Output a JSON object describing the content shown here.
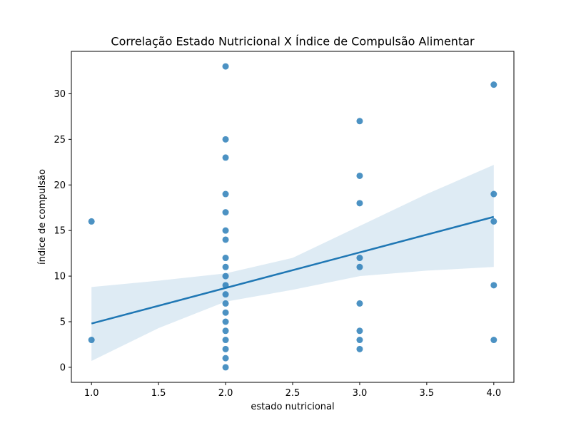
{
  "chart_data": {
    "type": "scatter",
    "title": "Correlação Estado Nutricional X Índice de Compulsão Alimentar",
    "xlabel": "estado nutricional",
    "ylabel": "índice de compulsão",
    "xlim": [
      0.85,
      4.15
    ],
    "ylim": [
      -1.65,
      34.65
    ],
    "xticks": [
      "1.0",
      "1.5",
      "2.0",
      "2.5",
      "3.0",
      "3.5",
      "4.0"
    ],
    "yticks": [
      "0",
      "5",
      "10",
      "15",
      "20",
      "25",
      "30"
    ],
    "grid": false,
    "point_color": "#1f77b4",
    "points": [
      {
        "x": 1.0,
        "y": 16
      },
      {
        "x": 1.0,
        "y": 3
      },
      {
        "x": 2.0,
        "y": 33
      },
      {
        "x": 2.0,
        "y": 25
      },
      {
        "x": 2.0,
        "y": 23
      },
      {
        "x": 2.0,
        "y": 19
      },
      {
        "x": 2.0,
        "y": 17
      },
      {
        "x": 2.0,
        "y": 15
      },
      {
        "x": 2.0,
        "y": 14
      },
      {
        "x": 2.0,
        "y": 12
      },
      {
        "x": 2.0,
        "y": 11
      },
      {
        "x": 2.0,
        "y": 10
      },
      {
        "x": 2.0,
        "y": 9
      },
      {
        "x": 2.0,
        "y": 8
      },
      {
        "x": 2.0,
        "y": 7
      },
      {
        "x": 2.0,
        "y": 6
      },
      {
        "x": 2.0,
        "y": 5
      },
      {
        "x": 2.0,
        "y": 4
      },
      {
        "x": 2.0,
        "y": 3
      },
      {
        "x": 2.0,
        "y": 2
      },
      {
        "x": 2.0,
        "y": 1
      },
      {
        "x": 2.0,
        "y": 0
      },
      {
        "x": 3.0,
        "y": 27
      },
      {
        "x": 3.0,
        "y": 21
      },
      {
        "x": 3.0,
        "y": 18
      },
      {
        "x": 3.0,
        "y": 12
      },
      {
        "x": 3.0,
        "y": 11
      },
      {
        "x": 3.0,
        "y": 7
      },
      {
        "x": 3.0,
        "y": 4
      },
      {
        "x": 3.0,
        "y": 3
      },
      {
        "x": 3.0,
        "y": 2
      },
      {
        "x": 4.0,
        "y": 31
      },
      {
        "x": 4.0,
        "y": 19
      },
      {
        "x": 4.0,
        "y": 16
      },
      {
        "x": 4.0,
        "y": 9
      },
      {
        "x": 4.0,
        "y": 3
      }
    ],
    "regression": {
      "color": "#1f77b4",
      "line": [
        {
          "x": 1.0,
          "y": 4.8
        },
        {
          "x": 4.0,
          "y": 16.5
        }
      ],
      "ci_band_color": "#1f77b4",
      "ci_upper": [
        {
          "x": 1.0,
          "y": 8.8
        },
        {
          "x": 1.5,
          "y": 9.5
        },
        {
          "x": 2.0,
          "y": 10.3
        },
        {
          "x": 2.5,
          "y": 12.0
        },
        {
          "x": 3.0,
          "y": 15.5
        },
        {
          "x": 3.5,
          "y": 19.0
        },
        {
          "x": 4.0,
          "y": 22.2
        }
      ],
      "ci_lower": [
        {
          "x": 1.0,
          "y": 0.7
        },
        {
          "x": 1.5,
          "y": 4.3
        },
        {
          "x": 2.0,
          "y": 7.2
        },
        {
          "x": 2.5,
          "y": 8.5
        },
        {
          "x": 3.0,
          "y": 10.0
        },
        {
          "x": 3.5,
          "y": 10.6
        },
        {
          "x": 4.0,
          "y": 11.0
        }
      ]
    }
  }
}
